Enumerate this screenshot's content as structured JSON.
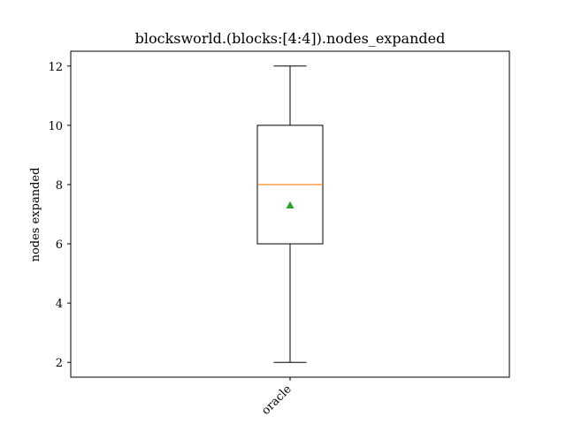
{
  "chart_data": {
    "type": "box",
    "title": "blocksworld.(blocks:[4:4]).nodes_expanded",
    "xlabel": "",
    "ylabel": "nodes expanded",
    "ylim": [
      1.5,
      12.5
    ],
    "y_ticks": [
      2,
      4,
      6,
      8,
      10,
      12
    ],
    "categories": [
      "oracle"
    ],
    "boxes": [
      {
        "category": "oracle",
        "whisker_low": 2,
        "q1": 6,
        "median": 8,
        "q3": 10,
        "whisker_high": 12,
        "mean": 7.3
      }
    ],
    "colors": {
      "box": "#000000",
      "median": "#ff7f0e",
      "mean": "#2ca02c"
    },
    "grid": false
  }
}
